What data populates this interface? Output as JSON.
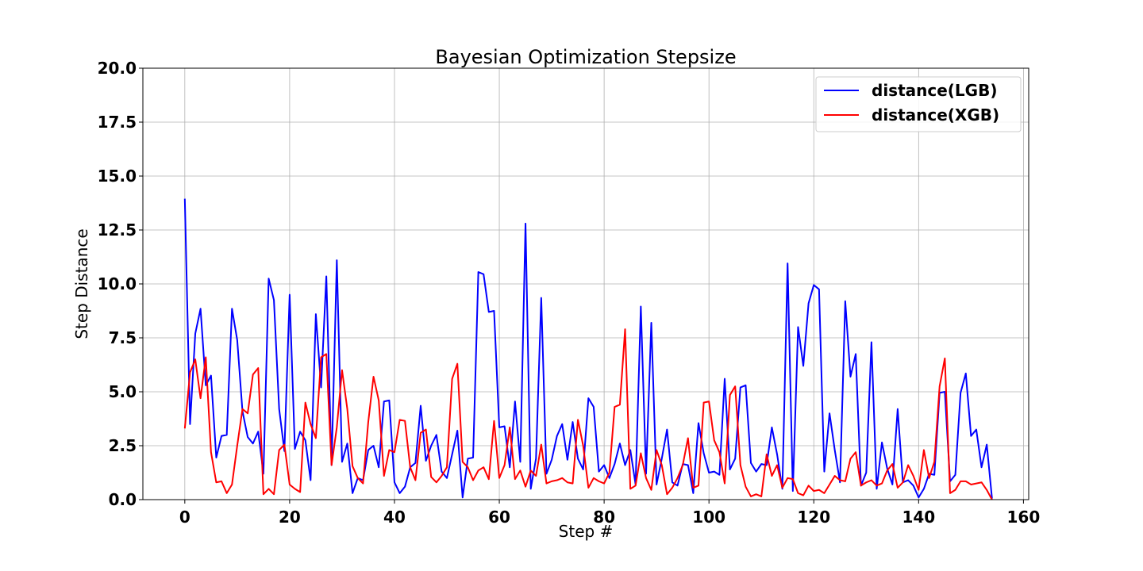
{
  "chart_data": {
    "type": "line",
    "title": "Bayesian Optimization Stepsize",
    "xlabel": "Step #",
    "ylabel": "Step Distance",
    "xlim": [
      -8,
      161
    ],
    "ylim": [
      0,
      20
    ],
    "xticks": [
      0,
      20,
      40,
      60,
      80,
      100,
      120,
      140,
      160
    ],
    "yticks": [
      0.0,
      2.5,
      5.0,
      7.5,
      10.0,
      12.5,
      15.0,
      17.5,
      20.0
    ],
    "ytick_labels": [
      "0.0",
      "2.5",
      "5.0",
      "7.5",
      "10.0",
      "12.5",
      "15.0",
      "17.5",
      "20.0"
    ],
    "grid": true,
    "legend_position": "top-right",
    "series": [
      {
        "name": "distance(LGB)",
        "color": "#0000ff",
        "values": [
          13.95,
          3.5,
          7.7,
          8.85,
          5.3,
          5.75,
          1.95,
          2.95,
          3.0,
          8.85,
          7.4,
          4.1,
          2.9,
          2.6,
          3.15,
          1.2,
          10.25,
          9.25,
          4.2,
          2.25,
          9.5,
          2.35,
          3.15,
          2.75,
          0.9,
          8.6,
          5.2,
          10.35,
          1.6,
          11.1,
          1.75,
          2.6,
          0.3,
          1.0,
          0.9,
          2.3,
          2.5,
          1.5,
          4.55,
          4.6,
          0.8,
          0.3,
          0.6,
          1.5,
          1.7,
          4.35,
          1.8,
          2.5,
          3.0,
          1.3,
          1.0,
          2.1,
          3.2,
          0.1,
          1.9,
          1.95,
          10.55,
          10.45,
          8.7,
          8.75,
          3.35,
          3.4,
          1.5,
          4.55,
          1.75,
          12.8,
          0.5,
          1.9,
          9.35,
          1.2,
          1.85,
          2.95,
          3.5,
          1.85,
          3.6,
          1.9,
          1.4,
          4.7,
          4.3,
          1.3,
          1.6,
          1.0,
          1.65,
          2.6,
          1.6,
          2.3,
          0.7,
          8.95,
          1.2,
          8.2,
          0.7,
          1.9,
          3.25,
          0.8,
          0.65,
          1.65,
          1.6,
          0.3,
          3.55,
          2.15,
          1.25,
          1.3,
          1.15,
          5.6,
          1.4,
          1.9,
          5.2,
          5.3,
          1.7,
          1.3,
          1.65,
          1.6,
          3.35,
          2.1,
          0.5,
          10.95,
          0.4,
          8.0,
          6.2,
          9.1,
          9.95,
          9.75,
          1.3,
          4.0,
          2.3,
          0.8,
          9.2,
          5.7,
          6.75,
          0.65,
          1.25,
          7.3,
          0.5,
          2.65,
          1.45,
          0.7,
          4.2,
          0.8,
          0.9,
          0.65,
          0.1,
          0.5,
          1.2,
          1.15,
          4.95,
          5.0,
          0.85,
          1.15,
          4.95,
          5.85,
          2.95,
          3.25,
          1.5,
          2.55,
          0.05
        ]
      },
      {
        "name": "distance(XGB)",
        "color": "#ff0000",
        "values": [
          3.3,
          5.9,
          6.5,
          4.7,
          6.6,
          2.2,
          0.8,
          0.85,
          0.3,
          0.7,
          2.5,
          4.2,
          4.0,
          5.8,
          6.1,
          0.25,
          0.5,
          0.25,
          2.3,
          2.55,
          0.7,
          0.5,
          0.35,
          4.5,
          3.5,
          2.85,
          6.6,
          6.75,
          1.6,
          3.35,
          6.0,
          4.2,
          1.55,
          1.0,
          0.75,
          3.6,
          5.7,
          4.6,
          1.1,
          2.3,
          2.2,
          3.7,
          3.65,
          1.5,
          0.9,
          3.1,
          3.25,
          1.05,
          0.8,
          1.1,
          1.5,
          5.6,
          6.3,
          1.75,
          1.5,
          0.9,
          1.35,
          1.5,
          0.95,
          3.65,
          1.0,
          1.6,
          3.35,
          0.95,
          1.35,
          0.6,
          1.35,
          1.1,
          2.55,
          0.75,
          0.85,
          0.9,
          1.0,
          0.8,
          0.75,
          3.7,
          2.5,
          0.55,
          1.0,
          0.85,
          0.75,
          1.25,
          4.3,
          4.4,
          7.9,
          0.5,
          0.65,
          2.15,
          1.0,
          0.45,
          2.3,
          1.6,
          0.25,
          0.55,
          1.0,
          1.6,
          2.85,
          0.55,
          0.65,
          4.5,
          4.55,
          2.75,
          2.2,
          0.75,
          4.85,
          5.25,
          1.6,
          0.6,
          0.15,
          0.25,
          0.15,
          2.1,
          1.1,
          1.6,
          0.55,
          1.0,
          0.95,
          0.3,
          0.2,
          0.65,
          0.4,
          0.45,
          0.3,
          0.7,
          1.1,
          0.9,
          0.85,
          1.9,
          2.2,
          0.65,
          0.8,
          0.9,
          0.65,
          0.75,
          1.35,
          1.65,
          0.55,
          0.8,
          1.6,
          1.1,
          0.45,
          2.3,
          1.0,
          1.75,
          5.25,
          6.55,
          0.3,
          0.45,
          0.85,
          0.85,
          0.7,
          0.75,
          0.8,
          0.45,
          0.0
        ]
      }
    ]
  }
}
